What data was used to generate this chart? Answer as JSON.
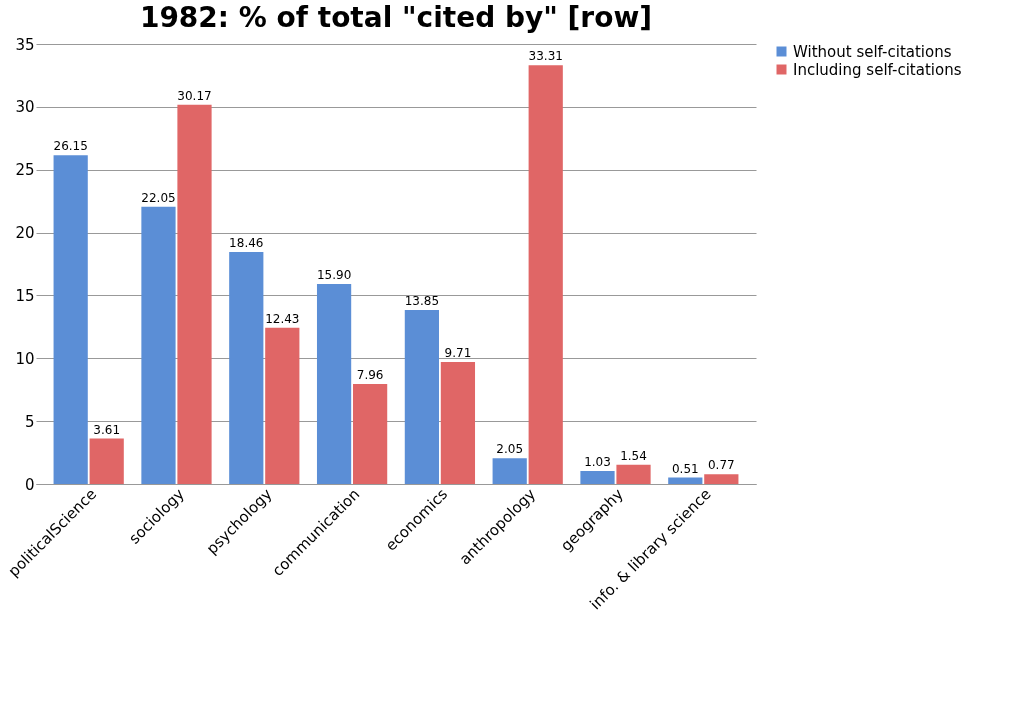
{
  "chart_data": {
    "type": "bar",
    "title": "1982: % of total \"cited by\" [row]",
    "categories": [
      "politicalScience",
      "sociology",
      "psychology",
      "communication",
      "economics",
      "anthropology",
      "geography",
      "info. & library science"
    ],
    "series": [
      {
        "name": "Without self-citations",
        "color": "#5b8ed6",
        "values": [
          26.15,
          22.05,
          18.46,
          15.9,
          13.85,
          2.05,
          1.03,
          0.51
        ],
        "value_labels": [
          "26.15",
          "22.05",
          "18.46",
          "15.90",
          "13.85",
          "2.05",
          "1.03",
          "0.51"
        ]
      },
      {
        "name": "Including self-citations",
        "color": "#e06666",
        "values": [
          3.61,
          30.17,
          12.43,
          7.96,
          9.71,
          33.31,
          1.54,
          0.77
        ],
        "value_labels": [
          "3.61",
          "30.17",
          "12.43",
          "7.96",
          "9.71",
          "33.31",
          "1.54",
          "0.77"
        ]
      }
    ],
    "ylim": [
      0,
      35
    ],
    "yticks": [
      0,
      5,
      10,
      15,
      20,
      25,
      30,
      35
    ],
    "grid": "y",
    "legend": "right"
  }
}
